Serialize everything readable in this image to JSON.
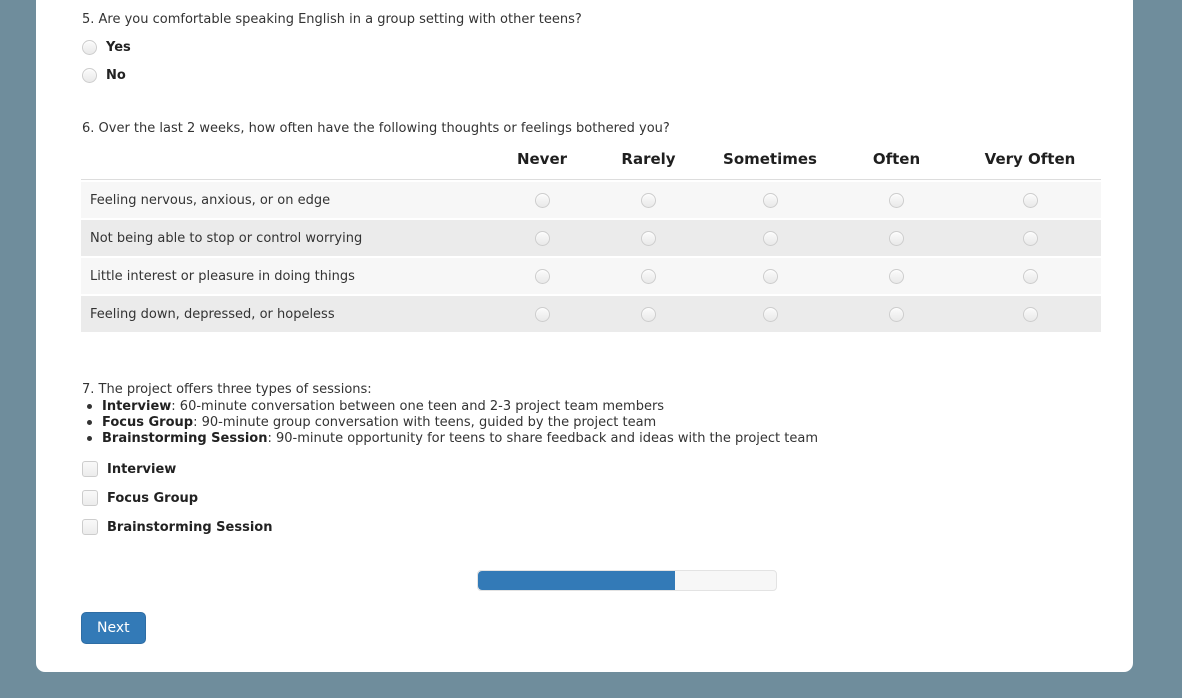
{
  "colors": {
    "page_background": "#6f8d9c",
    "card_background": "#ffffff",
    "accent_blue": "#337ab7",
    "matrix_row_light": "#f7f7f7",
    "matrix_row_dark": "#ebebeb"
  },
  "questions": {
    "q5": {
      "text": "5. Are you comfortable speaking English in a group setting with other teens?",
      "options": [
        {
          "label": "Yes"
        },
        {
          "label": "No"
        }
      ]
    },
    "q6": {
      "text": "6. Over the last 2 weeks, how often have the following thoughts or feelings bothered you?",
      "columns": [
        "Never",
        "Rarely",
        "Sometimes",
        "Often",
        "Very Often"
      ],
      "rows": [
        {
          "statement": "Feeling nervous, anxious, or on edge"
        },
        {
          "statement": "Not being able to stop or control worrying"
        },
        {
          "statement": "Little interest or pleasure in doing things"
        },
        {
          "statement": "Feeling down, depressed, or hopeless"
        }
      ]
    },
    "q7": {
      "text": "7. The project offers three types of sessions:",
      "bullets": [
        {
          "term": "Interview",
          "desc": ": 60-minute conversation between one teen and 2-3 project team members"
        },
        {
          "term": "Focus Group",
          "desc": ": 90-minute group conversation with teens, guided by the project team"
        },
        {
          "term": "Brainstorming Session",
          "desc": ": 90-minute opportunity for teens to share feedback and ideas with the project team"
        }
      ],
      "options": [
        {
          "label": "Interview"
        },
        {
          "label": "Focus Group"
        },
        {
          "label": "Brainstorming Session"
        }
      ]
    }
  },
  "progress": {
    "percent": 66
  },
  "buttons": {
    "next": "Next"
  }
}
